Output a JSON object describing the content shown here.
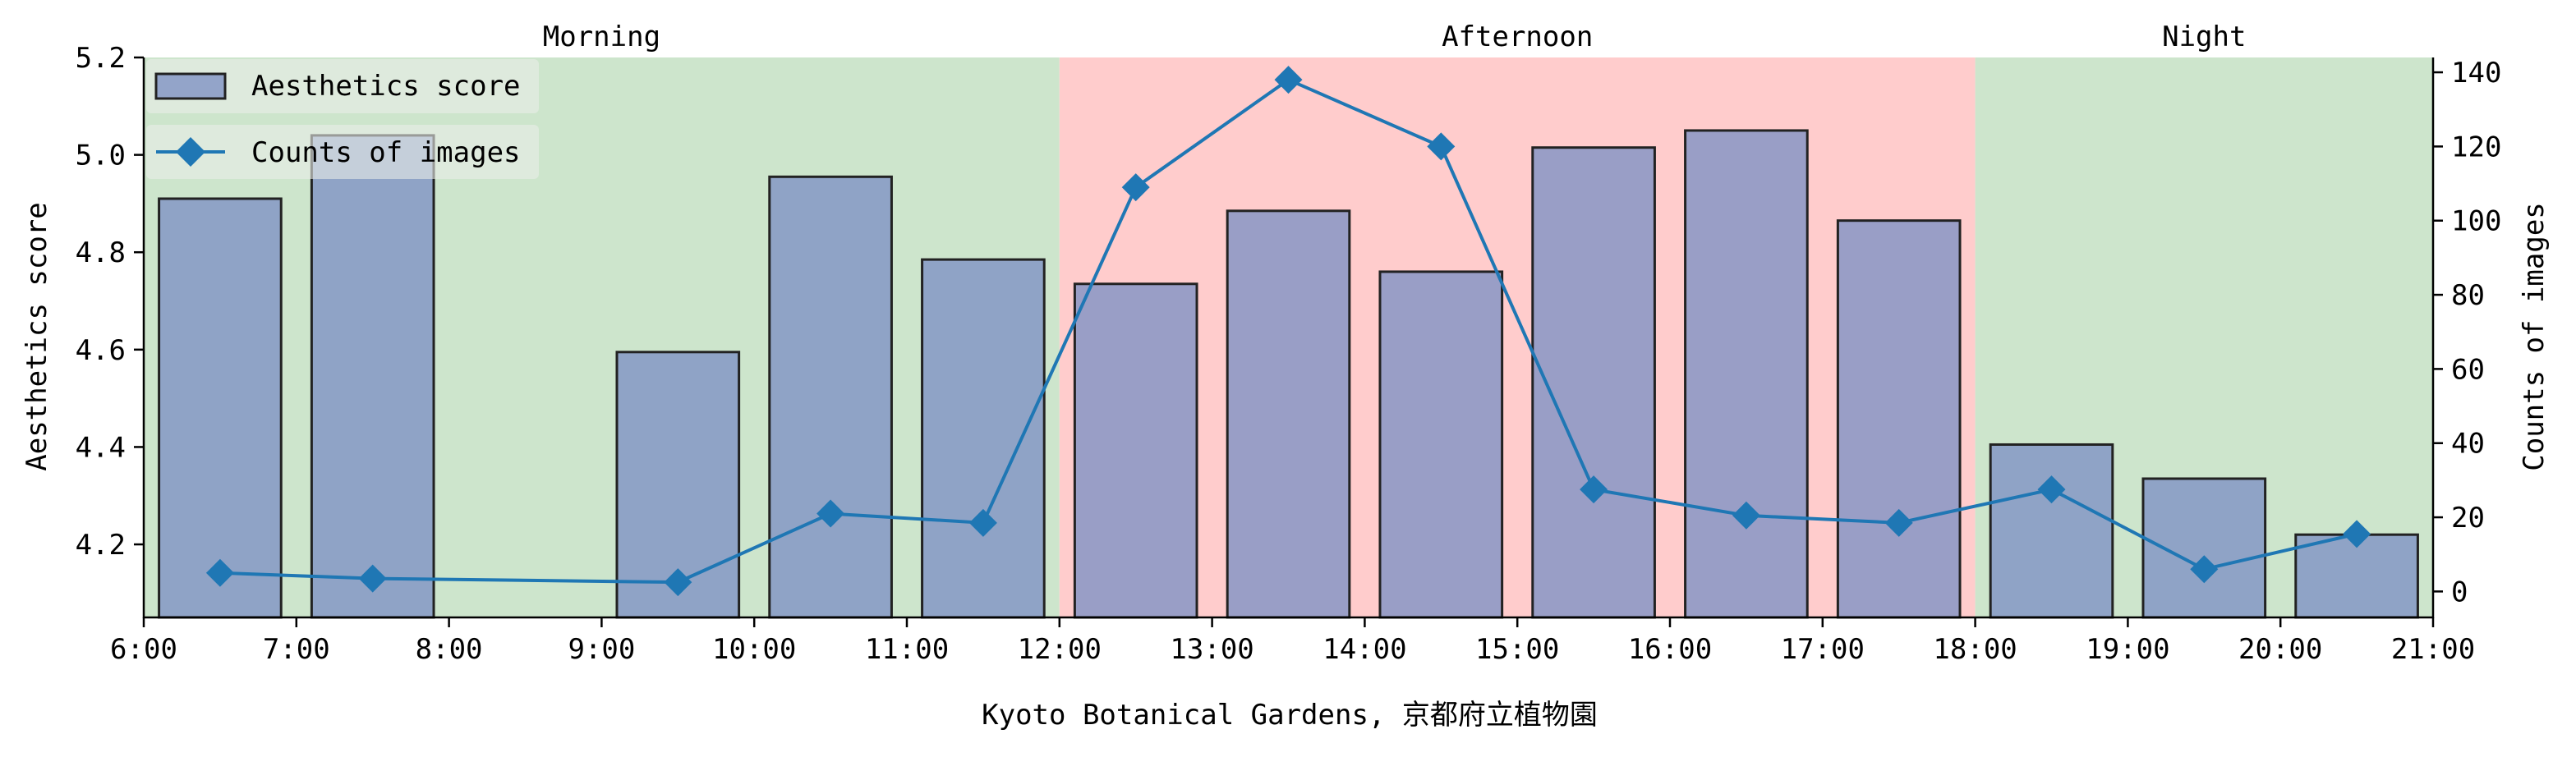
{
  "chart_data": {
    "type": "bar",
    "title": "",
    "xlabel": "Kyoto Botanical Gardens, 京都府立植物園",
    "ylabel_left": "Aesthetics score",
    "ylabel_right": "Counts of images",
    "xlim": [
      6,
      21
    ],
    "ylim_left": [
      4.05,
      5.2
    ],
    "ylim_right": [
      -7,
      144
    ],
    "x_ticks": [
      {
        "value": 6,
        "label": "6:00"
      },
      {
        "value": 7,
        "label": "7:00"
      },
      {
        "value": 8,
        "label": "8:00"
      },
      {
        "value": 9,
        "label": "9:00"
      },
      {
        "value": 10,
        "label": "10:00"
      },
      {
        "value": 11,
        "label": "11:00"
      },
      {
        "value": 12,
        "label": "12:00"
      },
      {
        "value": 13,
        "label": "13:00"
      },
      {
        "value": 14,
        "label": "14:00"
      },
      {
        "value": 15,
        "label": "15:00"
      },
      {
        "value": 16,
        "label": "16:00"
      },
      {
        "value": 17,
        "label": "17:00"
      },
      {
        "value": 18,
        "label": "18:00"
      },
      {
        "value": 19,
        "label": "19:00"
      },
      {
        "value": 20,
        "label": "20:00"
      },
      {
        "value": 21,
        "label": "21:00"
      }
    ],
    "y_left_ticks": [
      {
        "value": 4.2,
        "label": "4.2"
      },
      {
        "value": 4.4,
        "label": "4.4"
      },
      {
        "value": 4.6,
        "label": "4.6"
      },
      {
        "value": 4.8,
        "label": "4.8"
      },
      {
        "value": 5.0,
        "label": "5.0"
      },
      {
        "value": 5.2,
        "label": "5.2"
      }
    ],
    "y_right_ticks": [
      {
        "value": 0,
        "label": "0"
      },
      {
        "value": 20,
        "label": "20"
      },
      {
        "value": 40,
        "label": "40"
      },
      {
        "value": 60,
        "label": "60"
      },
      {
        "value": 80,
        "label": "80"
      },
      {
        "value": 100,
        "label": "100"
      },
      {
        "value": 120,
        "label": "120"
      },
      {
        "value": 140,
        "label": "140"
      }
    ],
    "bands": [
      {
        "label": "Morning",
        "start": 6,
        "end": 12,
        "color": "#cde5cc"
      },
      {
        "label": "Afternoon",
        "start": 12,
        "end": 18,
        "color": "#ffcccc"
      },
      {
        "label": "Night",
        "start": 18,
        "end": 21,
        "color": "#cde5cc"
      }
    ],
    "bar_series": {
      "name": "Aesthetics score",
      "color": "#8092c4",
      "edge_color": "#222222",
      "width": 0.8,
      "x": [
        6.5,
        7.5,
        9.5,
        10.5,
        11.5,
        12.5,
        13.5,
        14.5,
        15.5,
        16.5,
        17.5,
        18.5,
        19.5,
        20.5
      ],
      "values": [
        4.91,
        5.04,
        4.595,
        4.955,
        4.785,
        4.735,
        4.885,
        4.76,
        5.015,
        5.05,
        4.865,
        4.405,
        4.335,
        4.22
      ]
    },
    "line_series": {
      "name": "Counts of images",
      "color": "#1f77b4",
      "marker": "diamond",
      "x": [
        6.5,
        7.5,
        9.5,
        10.5,
        11.5,
        12.5,
        13.5,
        14.5,
        15.5,
        16.5,
        17.5,
        18.5,
        19.5,
        20.5
      ],
      "values": [
        5,
        3.5,
        2.5,
        21,
        18.5,
        109,
        138,
        120,
        27.5,
        20.5,
        18.5,
        27.5,
        6,
        15.5
      ]
    },
    "legend": {
      "placement": "top-left"
    },
    "grid": false
  }
}
